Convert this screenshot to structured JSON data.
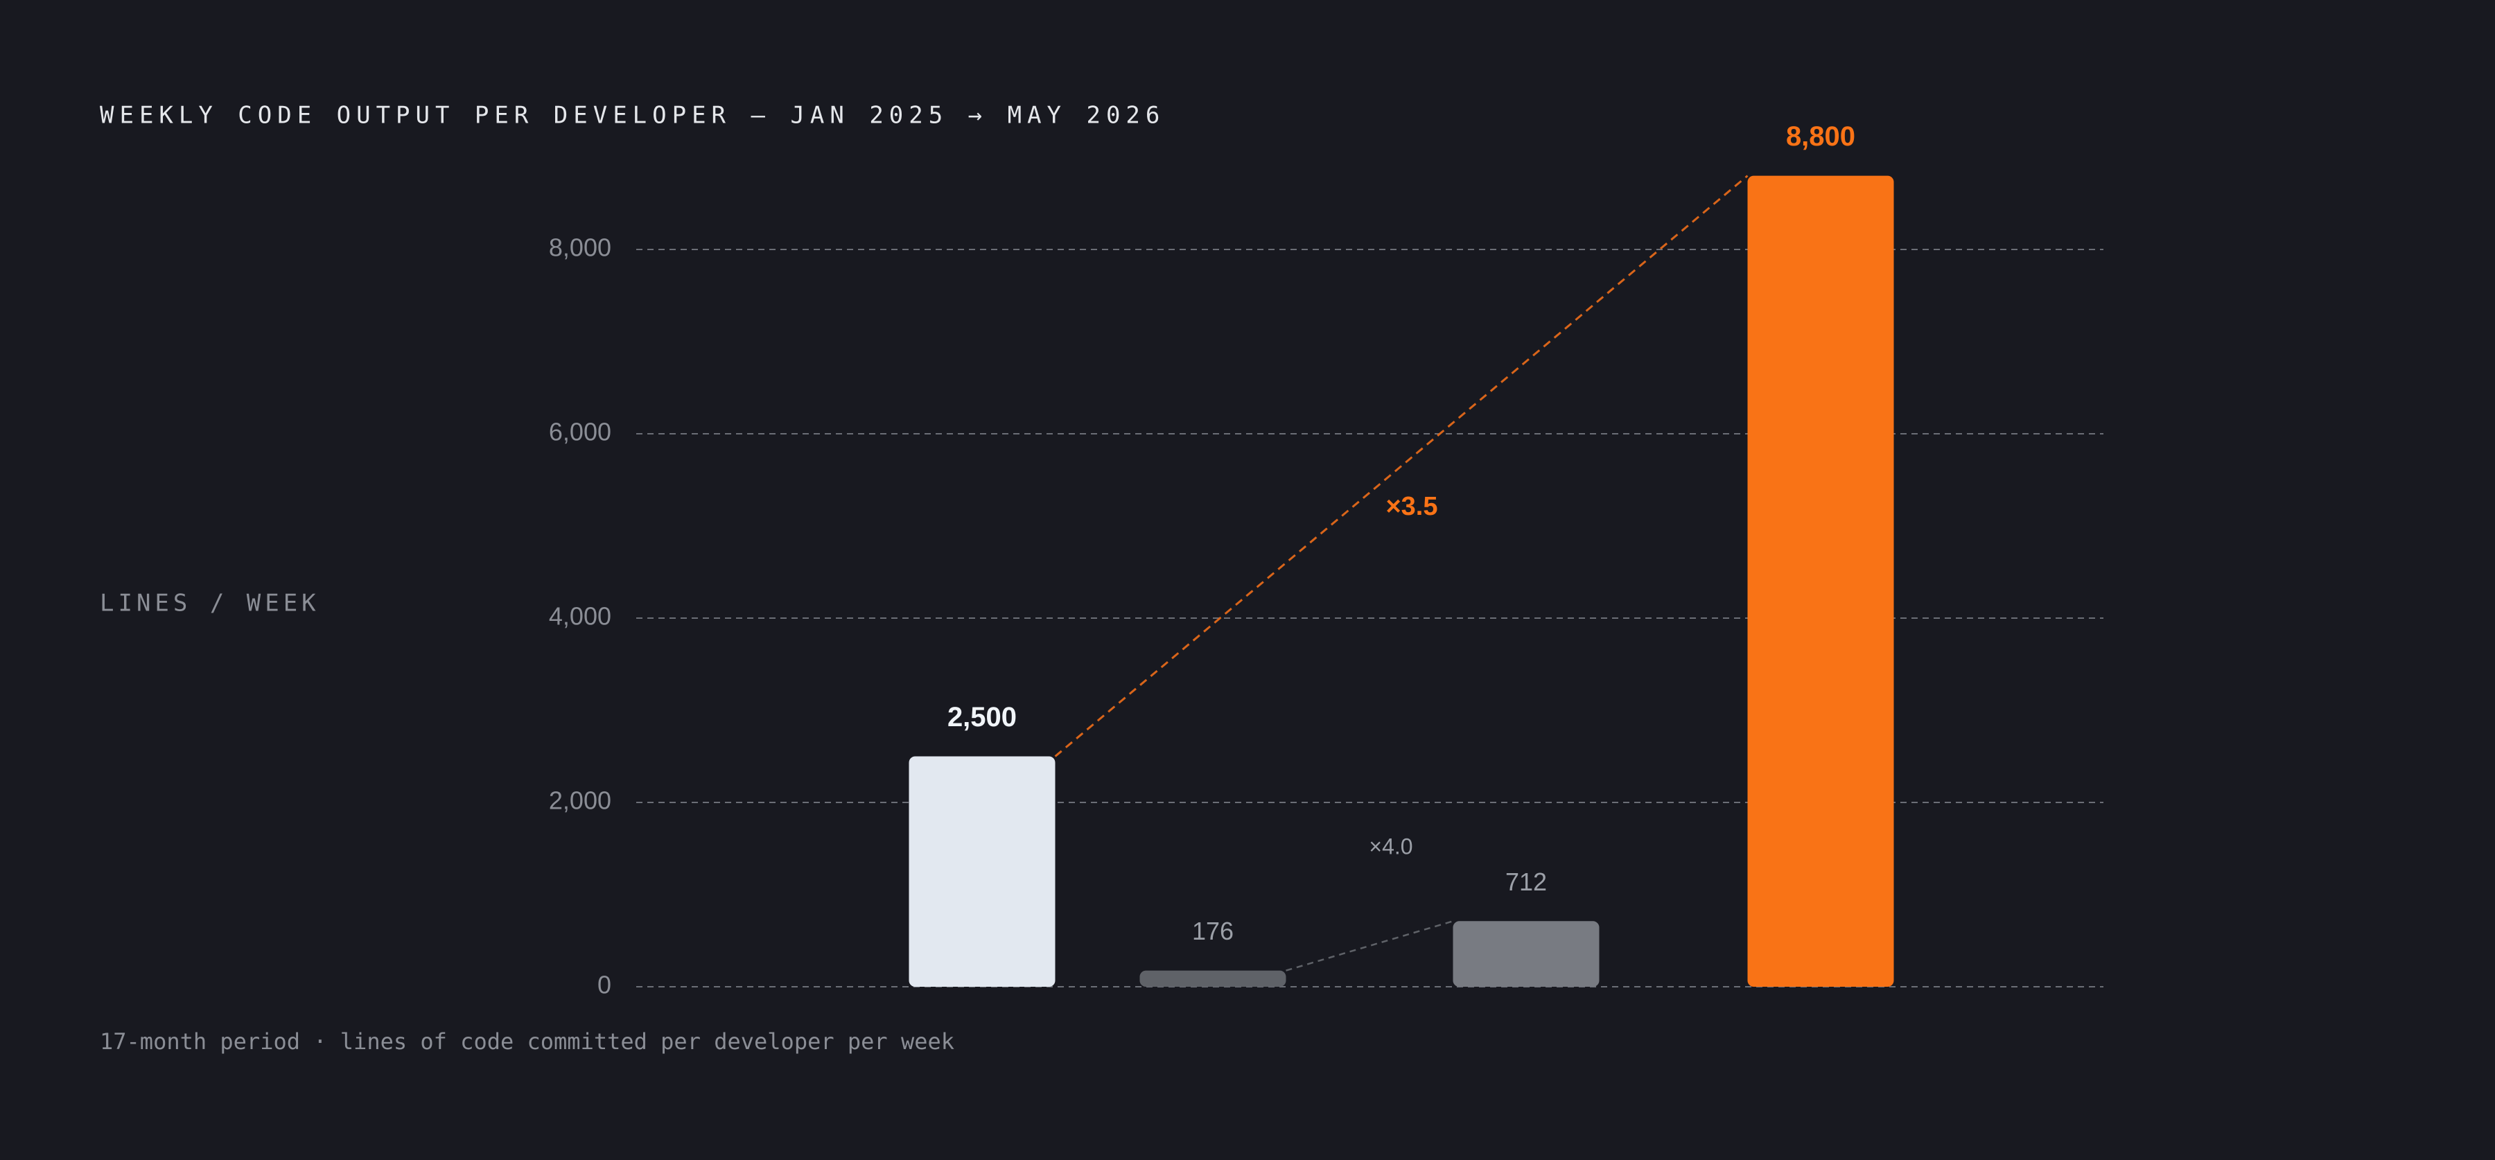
{
  "chart_data": {
    "type": "bar",
    "title": "WEEKLY CODE OUTPUT PER DEVELOPER — JAN 2025 → MAY 2026",
    "y_label": "LINES / WEEK",
    "footnote": "17-month period · lines of code committed per developer per week",
    "values": [
      2500,
      176,
      712,
      8800
    ],
    "value_labels": [
      "2,500",
      "176",
      "712",
      "8,800"
    ],
    "colors": [
      "#e2e8f0",
      "#5f6268",
      "#787b82",
      "#f97316"
    ],
    "annotations": [
      "×3.5",
      "×4.0"
    ],
    "ylim": [
      0,
      9000
    ],
    "yticks": [
      {
        "value": 0,
        "label": "0"
      },
      {
        "value": 2000,
        "label": "2,000"
      },
      {
        "value": 4000,
        "label": "4,000"
      },
      {
        "value": 6000,
        "label": "6,000"
      },
      {
        "value": 8000,
        "label": "8,000"
      }
    ],
    "grid": true
  }
}
